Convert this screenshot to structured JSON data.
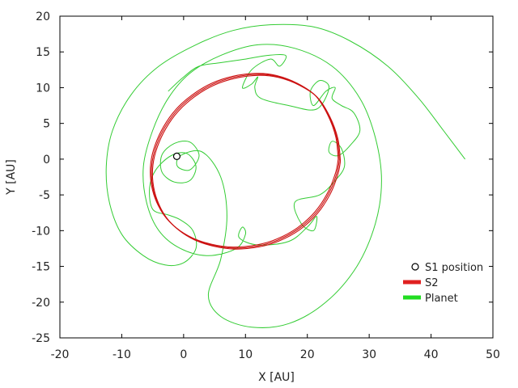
{
  "chart_data": {
    "type": "line",
    "title": "",
    "xlabel": "X [AU]",
    "ylabel": "Y [AU]",
    "xlim": [
      -20,
      50
    ],
    "ylim": [
      -25,
      20
    ],
    "xticks": [
      "-20",
      "-10",
      "0",
      "10",
      "20",
      "30",
      "40",
      "50"
    ],
    "yticks": [
      "20",
      "15",
      "10",
      "5",
      "0",
      "-5",
      "-10",
      "-15",
      "-20",
      "-25"
    ],
    "grid": false,
    "legend_position": "bottom-right",
    "legend": [
      {
        "label": "S1 position",
        "kind": "point"
      },
      {
        "label": "S2",
        "kind": "line",
        "color": "#e02020"
      },
      {
        "label": "Planet",
        "kind": "line",
        "color": "#22dd22"
      }
    ],
    "series": [
      {
        "name": "S1 position",
        "kind": "point",
        "points": [
          [
            -1.1,
            0.4
          ]
        ]
      },
      {
        "name": "S2",
        "kind": "line",
        "color": "#cc1111",
        "points": [
          [
            25.0,
            0.0
          ],
          [
            24.6,
            3.1
          ],
          [
            23.3,
            6.2
          ],
          [
            21.3,
            8.9
          ],
          [
            18.4,
            10.6
          ],
          [
            15.0,
            11.7
          ],
          [
            11.8,
            12.0
          ],
          [
            8.0,
            11.6
          ],
          [
            4.5,
            10.6
          ],
          [
            1.4,
            9.0
          ],
          [
            -1.2,
            7.0
          ],
          [
            -3.2,
            4.6
          ],
          [
            -4.6,
            2.0
          ],
          [
            -5.3,
            -0.5
          ],
          [
            -5.3,
            -3.0
          ],
          [
            -4.6,
            -5.5
          ],
          [
            -3.2,
            -7.8
          ],
          [
            -1.2,
            -9.6
          ],
          [
            1.4,
            -11.0
          ],
          [
            4.5,
            -11.9
          ],
          [
            8.0,
            -12.3
          ],
          [
            11.8,
            -12.0
          ],
          [
            15.0,
            -11.2
          ],
          [
            18.4,
            -9.6
          ],
          [
            21.3,
            -7.3
          ],
          [
            23.4,
            -4.5
          ],
          [
            24.6,
            -1.8
          ],
          [
            25.0,
            0.0
          ]
        ]
      },
      {
        "name": "Planet",
        "kind": "line",
        "color": "#33cc33",
        "points": [
          [
            45.5,
            0.0
          ],
          [
            42.0,
            4.0
          ],
          [
            38.0,
            8.5
          ],
          [
            33.0,
            13.0
          ],
          [
            27.0,
            16.5
          ],
          [
            21.0,
            18.5
          ],
          [
            14.0,
            18.8
          ],
          [
            8.0,
            18.0
          ],
          [
            2.0,
            16.0
          ],
          [
            -4.0,
            13.0
          ],
          [
            -8.5,
            9.0
          ],
          [
            -11.5,
            4.0
          ],
          [
            -12.5,
            -1.0
          ],
          [
            -12.0,
            -6.0
          ],
          [
            -10.0,
            -10.5
          ],
          [
            -6.5,
            -13.5
          ],
          [
            -3.0,
            -14.8
          ],
          [
            0.0,
            -14.5
          ],
          [
            2.0,
            -12.5
          ],
          [
            1.5,
            -10.0
          ],
          [
            -0.5,
            -8.5
          ],
          [
            -2.5,
            -7.8
          ],
          [
            -5.0,
            -7.0
          ],
          [
            -5.5,
            -4.0
          ],
          [
            -4.5,
            -1.5
          ],
          [
            -2.0,
            0.5
          ],
          [
            0.5,
            0.8
          ],
          [
            2.0,
            -1.0
          ],
          [
            1.0,
            -3.0
          ],
          [
            -1.5,
            -3.2
          ],
          [
            -3.5,
            -1.8
          ],
          [
            -3.5,
            0.6
          ],
          [
            -1.5,
            2.2
          ],
          [
            1.0,
            2.4
          ],
          [
            2.5,
            0.5
          ],
          [
            1.0,
            -1.5
          ],
          [
            -1.0,
            -1.0
          ],
          [
            -0.5,
            0.5
          ],
          [
            3.0,
            1.0
          ],
          [
            6.0,
            -2.5
          ],
          [
            7.0,
            -8.0
          ],
          [
            6.0,
            -14.0
          ],
          [
            4.0,
            -19.0
          ],
          [
            6.0,
            -22.0
          ],
          [
            11.0,
            -23.5
          ],
          [
            17.0,
            -23.0
          ],
          [
            23.0,
            -20.0
          ],
          [
            28.0,
            -15.0
          ],
          [
            31.0,
            -9.0
          ],
          [
            32.0,
            -3.0
          ],
          [
            31.0,
            3.0
          ],
          [
            28.5,
            8.5
          ],
          [
            24.0,
            13.0
          ],
          [
            18.0,
            15.5
          ],
          [
            12.0,
            16.0
          ],
          [
            6.0,
            14.5
          ],
          [
            1.0,
            12.0
          ],
          [
            -2.5,
            8.5
          ],
          [
            -5.0,
            4.0
          ],
          [
            -6.5,
            -1.0
          ],
          [
            -6.0,
            -6.0
          ],
          [
            -4.0,
            -10.0
          ],
          [
            -0.5,
            -12.5
          ],
          [
            4.0,
            -13.5
          ],
          [
            8.5,
            -12.5
          ],
          [
            10.0,
            -10.5
          ],
          [
            9.5,
            -9.5
          ],
          [
            9.0,
            -11.0
          ],
          [
            12.0,
            -12.0
          ],
          [
            17.0,
            -11.5
          ],
          [
            20.0,
            -9.5
          ],
          [
            21.5,
            -8.0
          ],
          [
            21.0,
            -10.0
          ],
          [
            19.0,
            -9.0
          ],
          [
            18.0,
            -6.0
          ],
          [
            22.0,
            -5.0
          ],
          [
            24.5,
            -3.0
          ],
          [
            26.0,
            -1.0
          ],
          [
            25.5,
            1.5
          ],
          [
            24.0,
            2.5
          ],
          [
            23.5,
            1.0
          ],
          [
            25.0,
            0.5
          ],
          [
            27.0,
            2.0
          ],
          [
            28.5,
            4.0
          ],
          [
            27.5,
            6.5
          ],
          [
            25.5,
            7.5
          ],
          [
            24.0,
            8.5
          ],
          [
            24.5,
            10.0
          ],
          [
            23.0,
            9.5
          ],
          [
            21.0,
            7.5
          ],
          [
            20.5,
            9.5
          ],
          [
            22.0,
            11.0
          ],
          [
            23.5,
            10.0
          ],
          [
            21.5,
            7.0
          ],
          [
            17.0,
            7.5
          ],
          [
            12.5,
            8.5
          ],
          [
            11.5,
            10.0
          ],
          [
            12.0,
            11.5
          ],
          [
            11.0,
            10.5
          ],
          [
            9.5,
            10.0
          ],
          [
            11.0,
            12.5
          ],
          [
            14.0,
            14.0
          ],
          [
            15.5,
            13.0
          ],
          [
            16.5,
            14.5
          ],
          [
            13.5,
            14.5
          ],
          [
            10.0,
            14.0
          ],
          [
            6.0,
            13.5
          ],
          [
            2.5,
            13.0
          ],
          [
            0.0,
            11.5
          ],
          [
            -2.5,
            9.5
          ]
        ]
      }
    ]
  }
}
